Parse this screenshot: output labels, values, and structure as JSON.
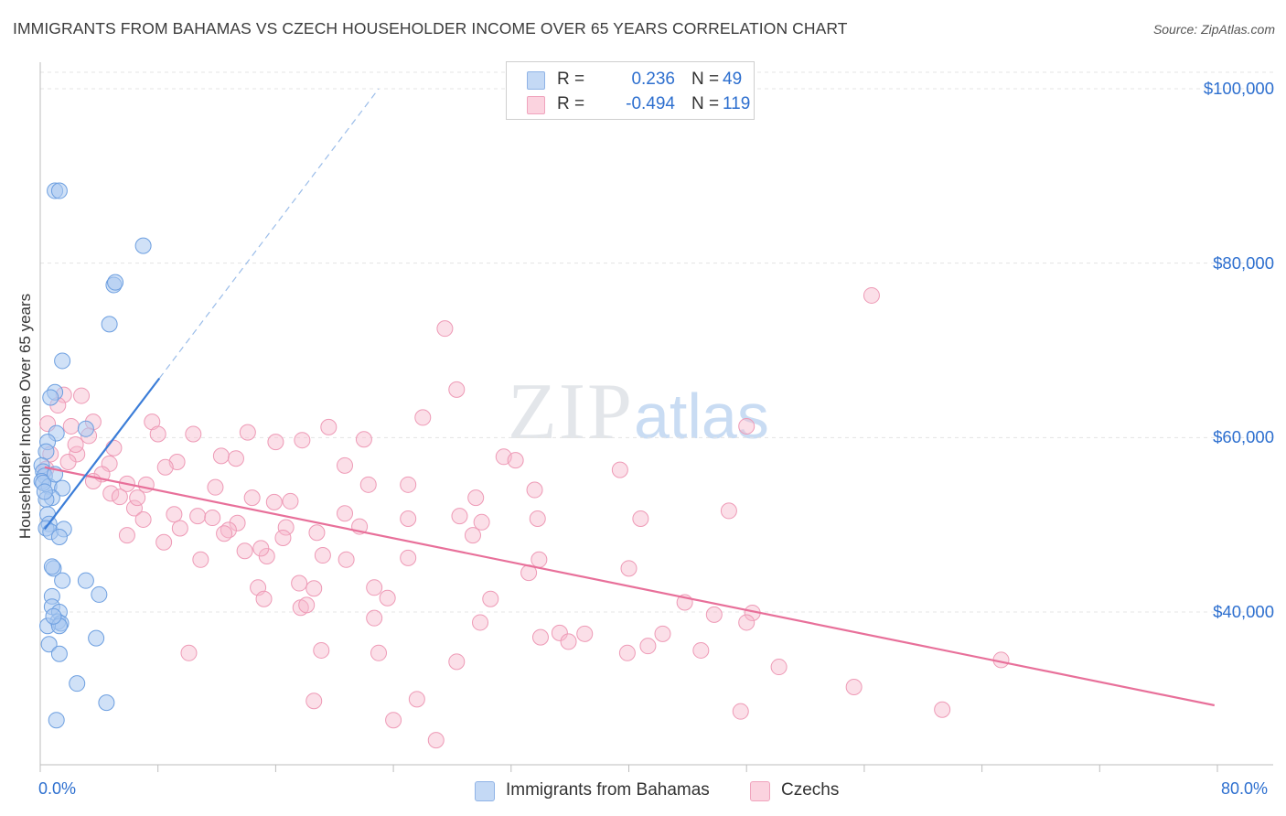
{
  "header": {
    "title": "IMMIGRANTS FROM BAHAMAS VS CZECH HOUSEHOLDER INCOME OVER 65 YEARS CORRELATION CHART",
    "source": "Source: ZipAtlas.com"
  },
  "watermark": {
    "zip": "ZIP",
    "atlas": "atlas"
  },
  "legend": {
    "rows": [
      {
        "r_label": "R =",
        "r_value": "0.236",
        "n_label": "N =",
        "n_value": "49",
        "color": "#a9c8f0"
      },
      {
        "r_label": "R =",
        "r_value": "-0.494",
        "n_label": "N =",
        "n_value": "119",
        "color": "#f6b9cc"
      }
    ]
  },
  "bottom_legend": {
    "series1": "Immigrants from Bahamas",
    "series2": "Czechs"
  },
  "axes": {
    "ylabel": "Householder Income Over 65 years",
    "x_min_label": "0.0%",
    "x_max_label": "80.0%",
    "y_ticks": [
      "$100,000",
      "$80,000",
      "$60,000",
      "$40,000"
    ]
  },
  "chart_data": {
    "type": "scatter",
    "title": "IMMIGRANTS FROM BAHAMAS VS CZECH HOUSEHOLDER INCOME OVER 65 YEARS CORRELATION CHART",
    "xlabel": "",
    "ylabel": "Householder Income Over 65 years",
    "xlim": [
      0,
      80
    ],
    "ylim": [
      21000,
      103000
    ],
    "x_unit": "%",
    "grid": true,
    "legend_placement": "bottom-center",
    "series": [
      {
        "name": "Immigrants from Bahamas",
        "color": "#3b7dd8",
        "fill": "#a9c8f0",
        "r": 0.236,
        "n": 49,
        "trend": {
          "x": [
            0.3,
            8.1
          ],
          "y": [
            49500,
            66800
          ],
          "dashed_to": {
            "x": 23,
            "y": 100000
          }
        },
        "points": [
          [
            1.0,
            88300
          ],
          [
            1.3,
            88300
          ],
          [
            7.0,
            82000
          ],
          [
            5.0,
            77500
          ],
          [
            5.1,
            77800
          ],
          [
            4.7,
            73000
          ],
          [
            1.5,
            68800
          ],
          [
            1.0,
            65200
          ],
          [
            0.7,
            64600
          ],
          [
            3.1,
            61000
          ],
          [
            1.1,
            60500
          ],
          [
            0.5,
            59500
          ],
          [
            0.4,
            58400
          ],
          [
            0.1,
            56800
          ],
          [
            0.2,
            56100
          ],
          [
            0.3,
            55600
          ],
          [
            0.1,
            55000
          ],
          [
            0.6,
            54400
          ],
          [
            0.2,
            54800
          ],
          [
            1.5,
            54200
          ],
          [
            0.8,
            53100
          ],
          [
            0.4,
            52900
          ],
          [
            0.5,
            51200
          ],
          [
            0.6,
            50100
          ],
          [
            0.4,
            49600
          ],
          [
            0.7,
            49200
          ],
          [
            1.6,
            49500
          ],
          [
            1.3,
            48600
          ],
          [
            0.9,
            45000
          ],
          [
            0.8,
            45200
          ],
          [
            3.1,
            43600
          ],
          [
            1.5,
            43600
          ],
          [
            4.0,
            42000
          ],
          [
            0.8,
            41800
          ],
          [
            0.8,
            40600
          ],
          [
            1.3,
            40000
          ],
          [
            1.2,
            38900
          ],
          [
            1.4,
            38700
          ],
          [
            0.5,
            38400
          ],
          [
            1.3,
            38400
          ],
          [
            3.8,
            37000
          ],
          [
            0.6,
            36300
          ],
          [
            1.3,
            35200
          ],
          [
            2.5,
            31800
          ],
          [
            4.5,
            29600
          ],
          [
            1.1,
            27600
          ],
          [
            0.9,
            39500
          ],
          [
            0.3,
            53800
          ],
          [
            1.0,
            55800
          ]
        ]
      },
      {
        "name": "Czechs",
        "color": "#e8709a",
        "fill": "#f6b9cc",
        "r": -0.494,
        "n": 119,
        "trend": {
          "x": [
            0.3,
            79.8
          ],
          "y": [
            56600,
            29300
          ]
        },
        "points": [
          [
            56.5,
            76300
          ],
          [
            27.5,
            72500
          ],
          [
            28.3,
            65500
          ],
          [
            1.6,
            64900
          ],
          [
            2.8,
            64800
          ],
          [
            1.2,
            63700
          ],
          [
            26.0,
            62300
          ],
          [
            3.6,
            61800
          ],
          [
            7.6,
            61800
          ],
          [
            2.1,
            61300
          ],
          [
            19.6,
            61200
          ],
          [
            48.0,
            61300
          ],
          [
            3.3,
            60200
          ],
          [
            8.0,
            60400
          ],
          [
            10.4,
            60400
          ],
          [
            14.1,
            60600
          ],
          [
            17.8,
            59700
          ],
          [
            22.0,
            59800
          ],
          [
            16.0,
            59500
          ],
          [
            5.0,
            58800
          ],
          [
            2.5,
            58100
          ],
          [
            12.3,
            57900
          ],
          [
            13.3,
            57600
          ],
          [
            9.3,
            57200
          ],
          [
            4.7,
            57000
          ],
          [
            31.5,
            57800
          ],
          [
            32.3,
            57400
          ],
          [
            8.5,
            56600
          ],
          [
            20.7,
            56800
          ],
          [
            39.4,
            56300
          ],
          [
            4.2,
            55800
          ],
          [
            0.4,
            56400
          ],
          [
            3.6,
            55000
          ],
          [
            5.9,
            54700
          ],
          [
            7.2,
            54600
          ],
          [
            11.9,
            54300
          ],
          [
            22.3,
            54600
          ],
          [
            25.0,
            54600
          ],
          [
            33.6,
            54000
          ],
          [
            4.8,
            53600
          ],
          [
            5.4,
            53200
          ],
          [
            14.4,
            53100
          ],
          [
            17.0,
            52700
          ],
          [
            29.6,
            53100
          ],
          [
            6.4,
            51900
          ],
          [
            15.9,
            52600
          ],
          [
            9.1,
            51200
          ],
          [
            10.7,
            51000
          ],
          [
            11.7,
            50800
          ],
          [
            20.7,
            51300
          ],
          [
            25.0,
            50700
          ],
          [
            28.5,
            51000
          ],
          [
            33.8,
            50700
          ],
          [
            40.8,
            50700
          ],
          [
            46.8,
            51600
          ],
          [
            7.0,
            50600
          ],
          [
            9.5,
            49600
          ],
          [
            13.4,
            50200
          ],
          [
            16.7,
            49700
          ],
          [
            21.7,
            49800
          ],
          [
            12.8,
            49400
          ],
          [
            18.8,
            49100
          ],
          [
            30.0,
            50300
          ],
          [
            16.5,
            48500
          ],
          [
            5.9,
            48800
          ],
          [
            8.4,
            48000
          ],
          [
            13.9,
            47000
          ],
          [
            10.9,
            46000
          ],
          [
            15.4,
            46400
          ],
          [
            19.2,
            46500
          ],
          [
            20.8,
            46000
          ],
          [
            25.0,
            46200
          ],
          [
            33.9,
            46000
          ],
          [
            33.2,
            44500
          ],
          [
            40.0,
            45000
          ],
          [
            14.8,
            42800
          ],
          [
            17.6,
            43300
          ],
          [
            18.6,
            42700
          ],
          [
            22.7,
            42800
          ],
          [
            15.2,
            41500
          ],
          [
            23.6,
            41600
          ],
          [
            30.6,
            41500
          ],
          [
            43.8,
            41100
          ],
          [
            17.7,
            40500
          ],
          [
            18.1,
            40800
          ],
          [
            45.8,
            39700
          ],
          [
            48.4,
            39900
          ],
          [
            22.7,
            39300
          ],
          [
            29.9,
            38800
          ],
          [
            48.0,
            38800
          ],
          [
            34.0,
            37100
          ],
          [
            35.3,
            37600
          ],
          [
            37.0,
            37500
          ],
          [
            42.3,
            37500
          ],
          [
            35.9,
            36600
          ],
          [
            10.1,
            35300
          ],
          [
            19.1,
            35600
          ],
          [
            23.0,
            35300
          ],
          [
            39.9,
            35300
          ],
          [
            41.3,
            36100
          ],
          [
            44.9,
            35600
          ],
          [
            28.3,
            34300
          ],
          [
            50.2,
            33700
          ],
          [
            55.3,
            31400
          ],
          [
            65.3,
            34500
          ],
          [
            18.6,
            29800
          ],
          [
            25.6,
            30000
          ],
          [
            24.0,
            27600
          ],
          [
            47.6,
            28600
          ],
          [
            61.3,
            28800
          ],
          [
            26.9,
            25300
          ],
          [
            6.6,
            53100
          ],
          [
            1.9,
            57200
          ],
          [
            0.7,
            58100
          ],
          [
            2.4,
            59200
          ],
          [
            0.5,
            61600
          ],
          [
            15.0,
            47300
          ],
          [
            12.5,
            49000
          ],
          [
            29.4,
            48800
          ]
        ]
      }
    ]
  }
}
